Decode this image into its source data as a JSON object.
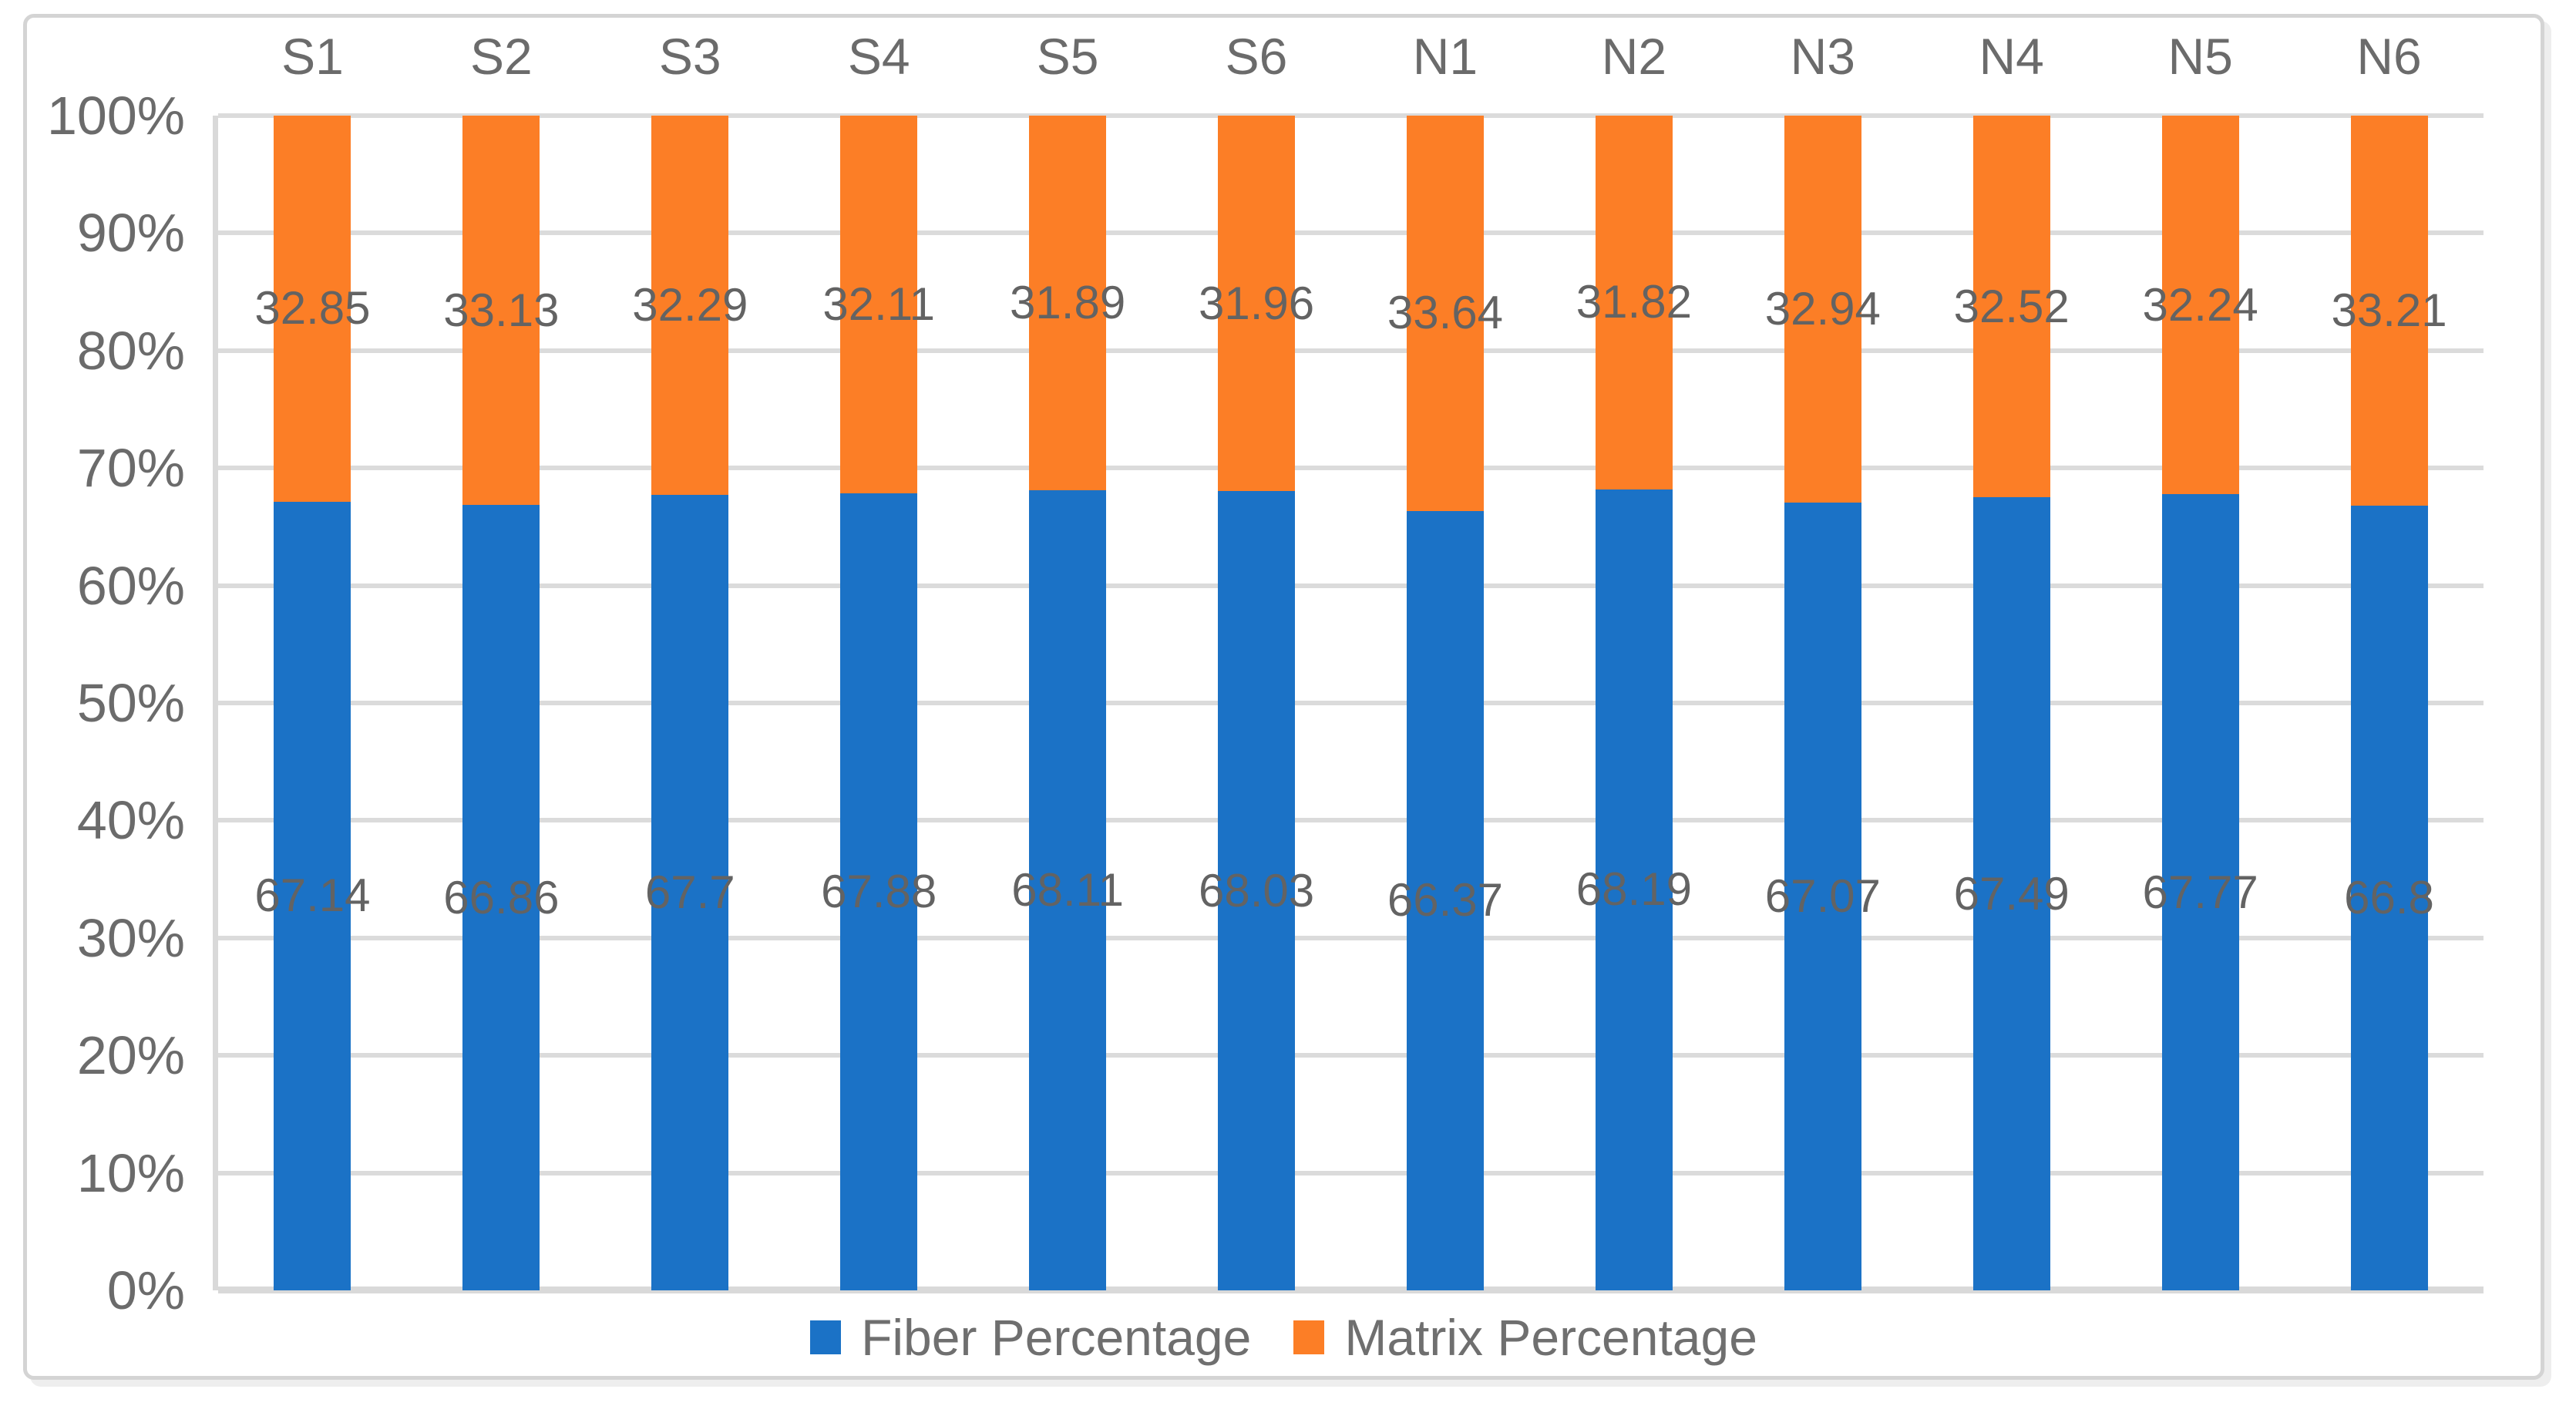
{
  "chart_data": {
    "type": "bar",
    "subtype": "stacked-100-percent",
    "orientation": "vertical",
    "categories": [
      "S1",
      "S2",
      "S3",
      "S4",
      "S5",
      "S6",
      "N1",
      "N2",
      "N3",
      "N4",
      "N5",
      "N6"
    ],
    "series": [
      {
        "name": "Fiber Percentage",
        "color": "#1B72C6",
        "values": [
          67.14,
          66.86,
          67.7,
          67.88,
          68.11,
          68.03,
          66.37,
          68.19,
          67.07,
          67.49,
          67.77,
          66.8
        ]
      },
      {
        "name": "Matrix Percentage",
        "color": "#FC7E26",
        "values": [
          32.85,
          33.13,
          32.29,
          32.11,
          31.89,
          31.96,
          33.64,
          31.82,
          32.94,
          32.52,
          32.24,
          33.21
        ]
      }
    ],
    "title": "",
    "xlabel": "",
    "ylabel": "",
    "y_axis": {
      "min": 0,
      "max": 100,
      "tick_step": 10,
      "tick_labels": [
        "0%",
        "10%",
        "20%",
        "30%",
        "40%",
        "50%",
        "60%",
        "70%",
        "80%",
        "90%",
        "100%"
      ]
    },
    "grid": true,
    "category_labels_position": "top",
    "data_labels_position": "segment-center",
    "legend": {
      "position": "bottom-center",
      "entries": [
        "Fiber Percentage",
        "Matrix Percentage"
      ]
    }
  },
  "colors": {
    "fiber": "#1B72C6",
    "matrix": "#FC7E26",
    "gridline": "#DBDBDB",
    "axis_line": "#D9D9D9",
    "label_text": "#6B6B6B",
    "frame_border": "#D4D4D4",
    "background": "#FFFFFF"
  }
}
